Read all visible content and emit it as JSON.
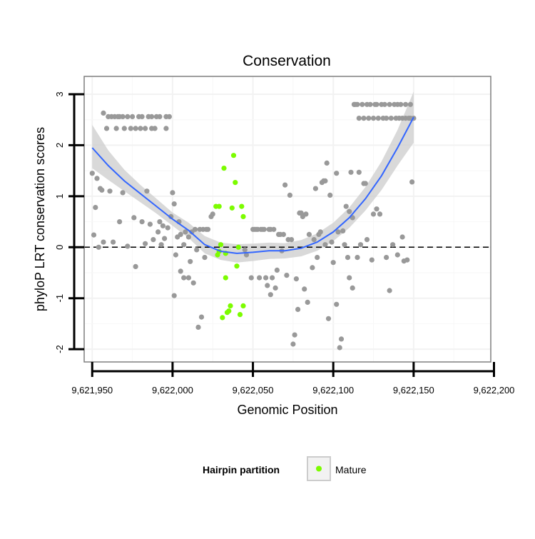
{
  "chart_data": {
    "type": "scatter",
    "title": "Conservation",
    "xlabel": "Genomic Position",
    "ylabel": "phyloP LRT conservation scores",
    "xlim": [
      9621945,
      9622198
    ],
    "ylim": [
      -2.25,
      3.35
    ],
    "x_ticks": [
      9621950,
      9622000,
      9622050,
      9622100,
      9622150,
      9622200
    ],
    "x_tick_labels": [
      "9,621,950",
      "9,622,000",
      "9,622,050",
      "9,622,100",
      "9,622,150",
      "9,622,200"
    ],
    "y_ticks": [
      -2,
      -1,
      0,
      1,
      2,
      3
    ],
    "y_tick_labels": [
      "-2",
      "-1",
      "0",
      "1",
      "2",
      "3"
    ],
    "grid": true,
    "reference_line": {
      "y": 0,
      "style": "dashed"
    },
    "legend": {
      "title": "Hairpin partition",
      "position": "bottom",
      "entries": [
        {
          "label": "Mature",
          "color": "#7cfc00"
        }
      ]
    },
    "colors": {
      "other": "#999999",
      "mature": "#7cfc00",
      "smooth_line": "#3366ff",
      "confidence_band": "#cccccc",
      "panel_border": "#7f7f7f"
    },
    "series": [
      {
        "name": "",
        "color": "#999999",
        "points": [
          [
            9621950,
            1.45
          ],
          [
            9621951,
            0.24
          ],
          [
            9621952,
            0.78
          ],
          [
            9621953,
            1.35
          ],
          [
            9621954,
            0.0
          ],
          [
            9621955,
            1.15
          ],
          [
            9621956,
            1.12
          ],
          [
            9621957,
            0.1
          ],
          [
            9621957,
            2.63
          ],
          [
            9621959,
            2.33
          ],
          [
            9621960,
            2.56
          ],
          [
            9621961,
            1.1
          ],
          [
            9621962,
            2.56
          ],
          [
            9621963,
            0.1
          ],
          [
            9621964,
            2.56
          ],
          [
            9621965,
            2.33
          ],
          [
            9621966,
            2.56
          ],
          [
            9621967,
            0.5
          ],
          [
            9621967,
            2.56
          ],
          [
            9621969,
            1.07
          ],
          [
            9621969,
            2.56
          ],
          [
            9621970,
            2.33
          ],
          [
            9621972,
            2.56
          ],
          [
            9621972,
            0.02
          ],
          [
            9621974,
            2.33
          ],
          [
            9621975,
            2.56
          ],
          [
            9621976,
            0.58
          ],
          [
            9621977,
            2.33
          ],
          [
            9621977,
            -0.38
          ],
          [
            9621979,
            2.56
          ],
          [
            9621980,
            2.33
          ],
          [
            9621981,
            0.5
          ],
          [
            9621981,
            2.56
          ],
          [
            9621983,
            2.33
          ],
          [
            9621983,
            0.07
          ],
          [
            9621984,
            1.1
          ],
          [
            9621985,
            2.56
          ],
          [
            9621986,
            0.45
          ],
          [
            9621987,
            2.33
          ],
          [
            9621987,
            2.56
          ],
          [
            9621988,
            0.15
          ],
          [
            9621989,
            2.33
          ],
          [
            9621990,
            2.56
          ],
          [
            9621991,
            0.3
          ],
          [
            9621992,
            0.5
          ],
          [
            9621992,
            2.56
          ],
          [
            9621993,
            0.05
          ],
          [
            9621994,
            0.42
          ],
          [
            9621995,
            0.17
          ],
          [
            9621996,
            2.33
          ],
          [
            9621996,
            2.56
          ],
          [
            9621997,
            0.38
          ],
          [
            9621998,
            2.56
          ],
          [
            9621999,
            0.6
          ],
          [
            9622000,
            1.07
          ],
          [
            9622001,
            0.85
          ],
          [
            9622001,
            -0.95
          ],
          [
            9622002,
            -0.15
          ],
          [
            9622003,
            0.2
          ],
          [
            9622004,
            0.5
          ],
          [
            9622005,
            0.25
          ],
          [
            9622005,
            -0.47
          ],
          [
            9622007,
            0.05
          ],
          [
            9622007,
            -0.6
          ],
          [
            9622008,
            0.3
          ],
          [
            9622010,
            0.2
          ],
          [
            9622010,
            -0.6
          ],
          [
            9622011,
            -0.28
          ],
          [
            9622012,
            0.3
          ],
          [
            9622013,
            -0.7
          ],
          [
            9622014,
            0.35
          ],
          [
            9622015,
            -0.05
          ],
          [
            9622016,
            -1.57
          ],
          [
            9622017,
            0.35
          ],
          [
            9622018,
            -1.37
          ],
          [
            9622019,
            0.35
          ],
          [
            9622020,
            -0.2
          ],
          [
            9622021,
            0.35
          ],
          [
            9622022,
            0.35
          ],
          [
            9622024,
            0.6
          ],
          [
            9622025,
            0.65
          ],
          [
            9622045,
            -0.05
          ],
          [
            9622046,
            -0.15
          ],
          [
            9622049,
            -0.6
          ],
          [
            9622050,
            0.35
          ],
          [
            9622051,
            0.35
          ],
          [
            9622052,
            0.35
          ],
          [
            9622053,
            0.35
          ],
          [
            9622054,
            -0.6
          ],
          [
            9622055,
            0.35
          ],
          [
            9622056,
            0.35
          ],
          [
            9622057,
            0.35
          ],
          [
            9622058,
            -0.6
          ],
          [
            9622059,
            -0.75
          ],
          [
            9622060,
            0.35
          ],
          [
            9622061,
            0.35
          ],
          [
            9622061,
            -0.93
          ],
          [
            9622062,
            -0.6
          ],
          [
            9622063,
            0.35
          ],
          [
            9622064,
            -0.8
          ],
          [
            9622065,
            -0.45
          ],
          [
            9622066,
            0.25
          ],
          [
            9622067,
            0.25
          ],
          [
            9622068,
            -0.07
          ],
          [
            9622069,
            0.25
          ],
          [
            9622070,
            1.22
          ],
          [
            9622071,
            -0.55
          ],
          [
            9622072,
            0.15
          ],
          [
            9622073,
            1.02
          ],
          [
            9622074,
            0.15
          ],
          [
            9622075,
            -1.9
          ],
          [
            9622076,
            -1.72
          ],
          [
            9622077,
            -0.62
          ],
          [
            9622078,
            -1.22
          ],
          [
            9622079,
            0.67
          ],
          [
            9622080,
            0.67
          ],
          [
            9622081,
            0.6
          ],
          [
            9622082,
            -0.82
          ],
          [
            9622083,
            0.65
          ],
          [
            9622084,
            -1.08
          ],
          [
            9622085,
            0.25
          ],
          [
            9622087,
            -0.4
          ],
          [
            9622088,
            0.15
          ],
          [
            9622089,
            1.15
          ],
          [
            9622090,
            -0.2
          ],
          [
            9622091,
            0.25
          ],
          [
            9622092,
            0.3
          ],
          [
            9622093,
            1.27
          ],
          [
            9622094,
            1.3
          ],
          [
            9622095,
            1.3
          ],
          [
            9622095,
            0.05
          ],
          [
            9622096,
            1.65
          ],
          [
            9622097,
            -1.4
          ],
          [
            9622098,
            1.02
          ],
          [
            9622099,
            0.1
          ],
          [
            9622100,
            -0.3
          ],
          [
            9622102,
            -1.12
          ],
          [
            9622102,
            1.45
          ],
          [
            9622103,
            0.3
          ],
          [
            9622104,
            -1.97
          ],
          [
            9622105,
            -1.8
          ],
          [
            9622106,
            0.32
          ],
          [
            9622107,
            0.05
          ],
          [
            9622108,
            0.8
          ],
          [
            9622109,
            -0.2
          ],
          [
            9622110,
            -0.6
          ],
          [
            9622110,
            0.7
          ],
          [
            9622111,
            1.47
          ],
          [
            9622112,
            -0.8
          ],
          [
            9622112,
            0.58
          ],
          [
            9622113,
            2.8
          ],
          [
            9622113,
            2.8
          ],
          [
            9622114,
            2.8
          ],
          [
            9622115,
            -0.2
          ],
          [
            9622115,
            2.8
          ],
          [
            9622116,
            1.47
          ],
          [
            9622116,
            2.53
          ],
          [
            9622117,
            0.05
          ],
          [
            9622118,
            2.8
          ],
          [
            9622119,
            1.25
          ],
          [
            9622119,
            2.53
          ],
          [
            9622120,
            1.25
          ],
          [
            9622121,
            0.15
          ],
          [
            9622121,
            2.8
          ],
          [
            9622122,
            2.53
          ],
          [
            9622123,
            2.8
          ],
          [
            9622124,
            -0.25
          ],
          [
            9622125,
            0.65
          ],
          [
            9622125,
            2.53
          ],
          [
            9622126,
            2.8
          ],
          [
            9622127,
            2.8
          ],
          [
            9622127,
            0.75
          ],
          [
            9622128,
            2.53
          ],
          [
            9622129,
            0.65
          ],
          [
            9622130,
            2.8
          ],
          [
            9622131,
            2.53
          ],
          [
            9622132,
            2.8
          ],
          [
            9622133,
            -0.2
          ],
          [
            9622133,
            2.53
          ],
          [
            9622135,
            -0.85
          ],
          [
            9622135,
            2.8
          ],
          [
            9622136,
            2.53
          ],
          [
            9622137,
            0.05
          ],
          [
            9622138,
            2.8
          ],
          [
            9622139,
            2.53
          ],
          [
            9622140,
            -0.15
          ],
          [
            9622140,
            2.8
          ],
          [
            9622141,
            2.53
          ],
          [
            9622142,
            2.8
          ],
          [
            9622143,
            0.2
          ],
          [
            9622143,
            2.53
          ],
          [
            9622144,
            -0.27
          ],
          [
            9622145,
            2.8
          ],
          [
            9622145,
            2.53
          ],
          [
            9622146,
            -0.25
          ],
          [
            9622147,
            2.53
          ],
          [
            9622148,
            2.8
          ],
          [
            9622148,
            2.53
          ],
          [
            9622149,
            1.28
          ],
          [
            9622150,
            2.53
          ]
        ]
      },
      {
        "name": "Mature",
        "color": "#7cfc00",
        "points": [
          [
            9622027,
            0.8
          ],
          [
            9622028,
            -0.15
          ],
          [
            9622029,
            -0.08
          ],
          [
            9622029,
            0.8
          ],
          [
            9622030,
            0.05
          ],
          [
            9622031,
            -1.38
          ],
          [
            9622032,
            1.55
          ],
          [
            9622033,
            -0.12
          ],
          [
            9622033,
            -0.6
          ],
          [
            9622034,
            -1.28
          ],
          [
            9622035,
            -1.25
          ],
          [
            9622036,
            -1.15
          ],
          [
            9622037,
            0.77
          ],
          [
            9622038,
            1.8
          ],
          [
            9622039,
            1.27
          ],
          [
            9622040,
            -0.37
          ],
          [
            9622041,
            0.0
          ],
          [
            9622042,
            -1.32
          ],
          [
            9622043,
            0.8
          ],
          [
            9622044,
            -1.15
          ],
          [
            9622044,
            0.6
          ]
        ]
      }
    ],
    "smooth": {
      "x": [
        9621950,
        9621960,
        9621970,
        9621980,
        9621990,
        9622000,
        9622010,
        9622020,
        9622030,
        9622040,
        9622050,
        9622060,
        9622070,
        9622080,
        9622090,
        9622100,
        9622110,
        9622120,
        9622130,
        9622140,
        9622150
      ],
      "y": [
        1.95,
        1.6,
        1.3,
        1.05,
        0.8,
        0.55,
        0.33,
        0.05,
        -0.08,
        -0.12,
        -0.1,
        -0.07,
        -0.07,
        -0.02,
        0.1,
        0.3,
        0.58,
        0.95,
        1.4,
        1.95,
        2.55
      ],
      "ci_low": [
        1.55,
        1.32,
        1.1,
        0.88,
        0.66,
        0.42,
        0.18,
        -0.12,
        -0.25,
        -0.3,
        -0.27,
        -0.23,
        -0.22,
        -0.18,
        -0.07,
        0.12,
        0.38,
        0.72,
        1.12,
        1.6,
        2.05
      ],
      "ci_high": [
        2.4,
        1.9,
        1.52,
        1.22,
        0.95,
        0.68,
        0.48,
        0.22,
        0.09,
        0.06,
        0.07,
        0.09,
        0.08,
        0.14,
        0.27,
        0.48,
        0.78,
        1.18,
        1.68,
        2.3,
        3.05
      ]
    }
  }
}
